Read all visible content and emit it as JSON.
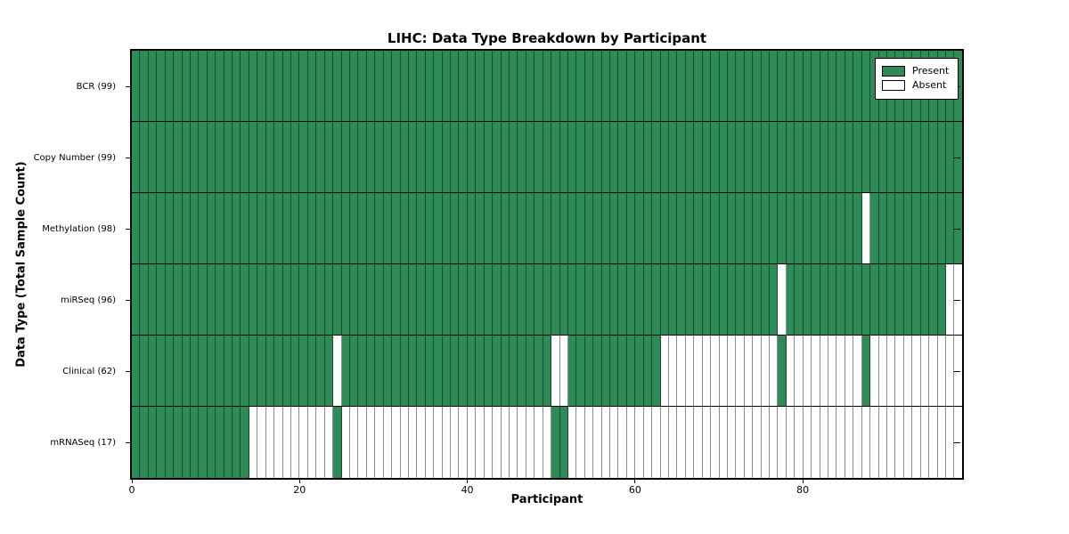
{
  "chart_data": {
    "type": "heatmap",
    "title": "LIHC: Data Type Breakdown by Participant",
    "xlabel": "Participant",
    "ylabel": "Data Type (Total Sample Count)",
    "x_ticks": [
      0,
      20,
      40,
      60,
      80
    ],
    "n_participants": 99,
    "present_color": "#2e8b57",
    "absent_color": "#ffffff",
    "legend_position": "upper right",
    "grid": "cell borders on",
    "legend": [
      {
        "label": "Present",
        "color": "#2e8b57"
      },
      {
        "label": "Absent",
        "color": "#ffffff"
      }
    ],
    "rows": [
      {
        "label": "BCR (99)",
        "total": 99,
        "runs": [
          [
            1,
            99
          ]
        ]
      },
      {
        "label": "Copy Number (99)",
        "total": 99,
        "runs": [
          [
            1,
            99
          ]
        ]
      },
      {
        "label": "Methylation (98)",
        "total": 98,
        "runs": [
          [
            1,
            87
          ],
          [
            0,
            1
          ],
          [
            1,
            11
          ]
        ]
      },
      {
        "label": "miRSeq (96)",
        "total": 96,
        "runs": [
          [
            1,
            77
          ],
          [
            0,
            1
          ],
          [
            1,
            19
          ],
          [
            0,
            2
          ]
        ]
      },
      {
        "label": "Clinical (62)",
        "total": 62,
        "runs": [
          [
            1,
            24
          ],
          [
            0,
            1
          ],
          [
            1,
            25
          ],
          [
            0,
            2
          ],
          [
            1,
            11
          ],
          [
            0,
            14
          ],
          [
            1,
            1
          ],
          [
            0,
            9
          ],
          [
            1,
            1
          ],
          [
            0,
            11
          ]
        ]
      },
      {
        "label": "mRNASeq (17)",
        "total": 17,
        "runs": [
          [
            1,
            14
          ],
          [
            0,
            10
          ],
          [
            1,
            1
          ],
          [
            0,
            25
          ],
          [
            1,
            2
          ],
          [
            0,
            47
          ]
        ]
      }
    ]
  }
}
